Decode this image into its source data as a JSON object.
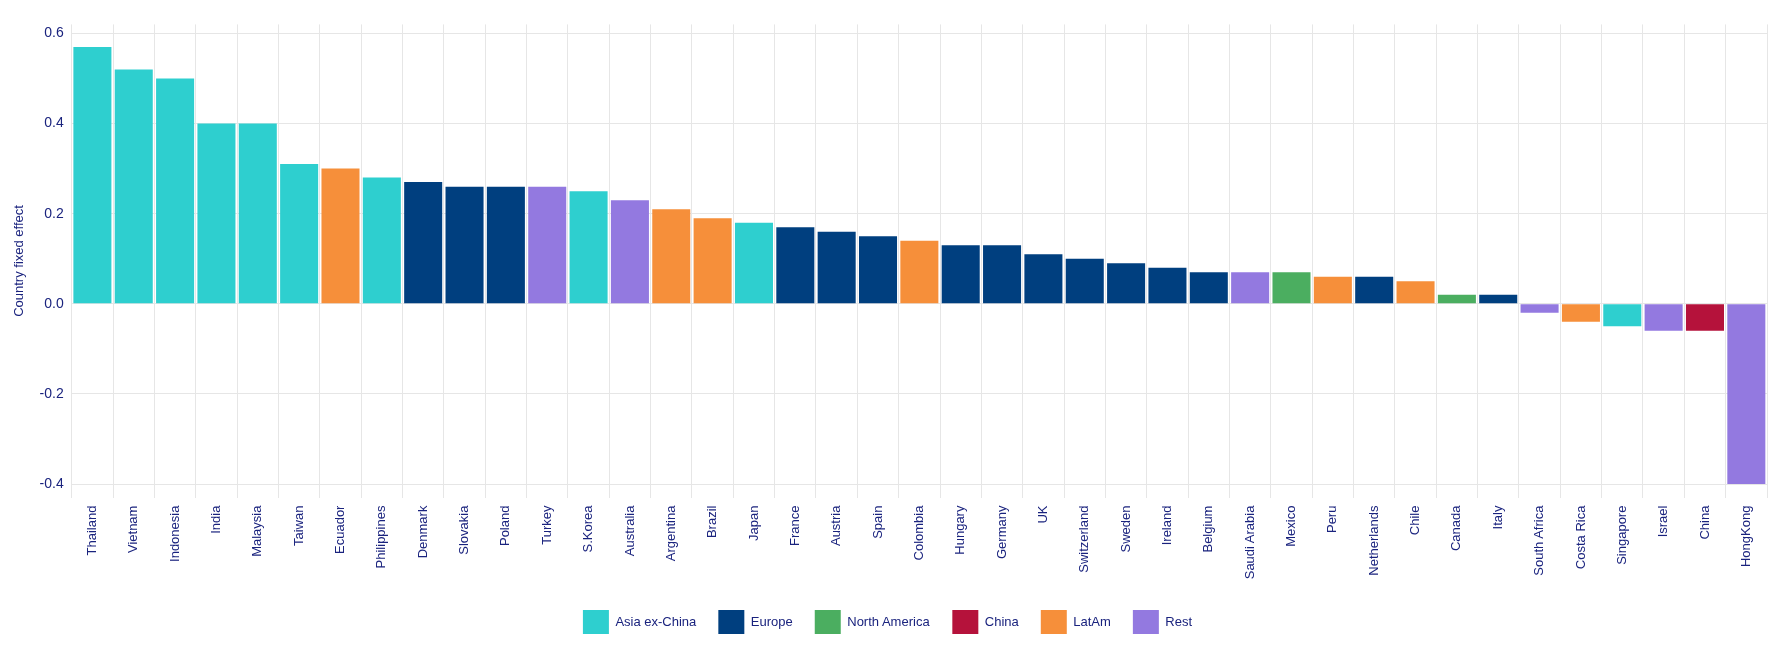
{
  "chart_data": {
    "type": "bar",
    "ylabel": "Country fixed effect",
    "categories": [
      "Thailand",
      "Vietnam",
      "Indonesia",
      "India",
      "Malaysia",
      "Taiwan",
      "Ecuador",
      "Philippines",
      "Denmark",
      "Slovakia",
      "Poland",
      "Turkey",
      "S.Korea",
      "Australia",
      "Argentina",
      "Brazil",
      "Japan",
      "France",
      "Austria",
      "Spain",
      "Colombia",
      "Hungary",
      "Germany",
      "UK",
      "Switzerland",
      "Sweden",
      "Ireland",
      "Belgium",
      "Saudi Arabia",
      "Mexico",
      "Peru",
      "Netherlands",
      "Chile",
      "Canada",
      "Italy",
      "South Africa",
      "Costa Rica",
      "Singapore",
      "Israel",
      "China",
      "HongKong"
    ],
    "series": [
      {
        "name": "Asia ex-China",
        "color": "#2ecfcf",
        "values": [
          0.57,
          0.52,
          0.5,
          0.4,
          0.4,
          0.31,
          null,
          0.28,
          null,
          null,
          null,
          null,
          0.25,
          null,
          null,
          null,
          0.18,
          null,
          null,
          null,
          null,
          null,
          null,
          null,
          null,
          null,
          null,
          null,
          null,
          null,
          null,
          null,
          null,
          null,
          null,
          null,
          null,
          -0.05,
          null,
          null,
          null
        ]
      },
      {
        "name": "Europe",
        "color": "#003f7f",
        "values": [
          null,
          null,
          null,
          null,
          null,
          null,
          null,
          null,
          0.27,
          0.26,
          0.26,
          null,
          null,
          null,
          null,
          null,
          null,
          0.17,
          0.16,
          0.15,
          null,
          0.13,
          0.13,
          0.11,
          0.1,
          0.09,
          0.08,
          0.07,
          null,
          null,
          null,
          0.06,
          null,
          null,
          0.02,
          null,
          null,
          null,
          null,
          null,
          null
        ]
      },
      {
        "name": "North America",
        "color": "#4bae60",
        "values": [
          null,
          null,
          null,
          null,
          null,
          null,
          null,
          null,
          null,
          null,
          null,
          null,
          null,
          null,
          null,
          null,
          null,
          null,
          null,
          null,
          null,
          null,
          null,
          null,
          null,
          null,
          null,
          null,
          null,
          0.07,
          null,
          null,
          null,
          0.02,
          null,
          null,
          null,
          null,
          null,
          null,
          null
        ]
      },
      {
        "name": "China",
        "color": "#b5123b",
        "values": [
          null,
          null,
          null,
          null,
          null,
          null,
          null,
          null,
          null,
          null,
          null,
          null,
          null,
          null,
          null,
          null,
          null,
          null,
          null,
          null,
          null,
          null,
          null,
          null,
          null,
          null,
          null,
          null,
          null,
          null,
          null,
          null,
          null,
          null,
          null,
          null,
          null,
          null,
          null,
          -0.06,
          null
        ]
      },
      {
        "name": "LatAm",
        "color": "#f68f3a",
        "values": [
          null,
          null,
          null,
          null,
          null,
          null,
          0.3,
          null,
          null,
          null,
          null,
          null,
          null,
          null,
          0.21,
          0.19,
          null,
          null,
          null,
          null,
          0.14,
          null,
          null,
          null,
          null,
          null,
          null,
          null,
          null,
          null,
          0.06,
          null,
          0.05,
          null,
          null,
          null,
          -0.04,
          null,
          null,
          null,
          null
        ]
      },
      {
        "name": "Rest",
        "color": "#9379e0",
        "values": [
          null,
          null,
          null,
          null,
          null,
          null,
          null,
          null,
          null,
          null,
          null,
          0.26,
          null,
          0.23,
          null,
          null,
          null,
          null,
          null,
          null,
          null,
          null,
          null,
          null,
          null,
          null,
          null,
          null,
          0.07,
          null,
          null,
          null,
          null,
          null,
          null,
          -0.02,
          null,
          null,
          -0.06,
          null,
          -0.4
        ]
      }
    ],
    "ylim": [
      -0.43,
      0.62
    ],
    "yticks": [
      -0.4,
      -0.2,
      {
        "value": 0,
        "label": "0.0"
      },
      0.2,
      0.4,
      0.6
    ],
    "grid": true,
    "legend": "bottom"
  }
}
